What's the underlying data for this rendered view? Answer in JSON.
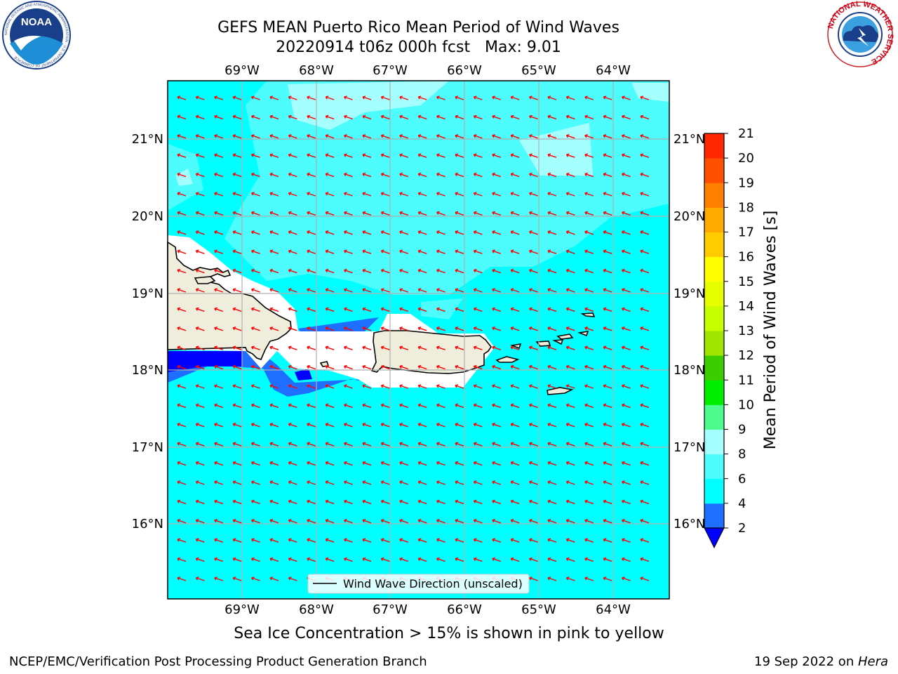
{
  "header": {
    "title_line1": "GEFS MEAN Puerto Rico Mean Period of Wind Waves",
    "title_line2": "20220914 t06z 000h fcst   Max: 9.01"
  },
  "logos": {
    "left": "noaa-logo",
    "left_text": "NOAA",
    "left_ring_text": "NATIONAL OCEANIC AND ATMOSPHERIC ADMINISTRATION · U.S. DEPARTMENT OF COMMERCE",
    "right": "national-weather-service-logo",
    "right_ring_text": "NATIONAL WEATHER SERVICE"
  },
  "map": {
    "lon_labels": [
      "69°W",
      "68°W",
      "67°W",
      "66°W",
      "65°W",
      "64°W"
    ],
    "lat_labels": [
      "21°N",
      "20°N",
      "19°N",
      "18°N",
      "17°N",
      "16°N"
    ],
    "lon_range": [
      -70.0,
      -63.3
    ],
    "lat_range": [
      15.0,
      21.75
    ],
    "legend_label": "Wind Wave Direction (unscaled)",
    "arrow_color": "#ff0000",
    "land_color": "#efeedd"
  },
  "colorbar": {
    "label": "Mean Period of Wind Waves [s]",
    "tick_labels": [
      "2",
      "4",
      "6",
      "8",
      "9",
      "10",
      "11",
      "12",
      "13",
      "14",
      "15",
      "16",
      "17",
      "18",
      "19",
      "20",
      "21"
    ],
    "colors": [
      "#0000ff",
      "#1e6eff",
      "#00ffff",
      "#4dfcfc",
      "#a5ffff",
      "#4dfc8c",
      "#00ee00",
      "#3ccc00",
      "#a0e600",
      "#c8ff00",
      "#e6ff00",
      "#ffff00",
      "#ffcc00",
      "#ffaa00",
      "#ff8000",
      "#ff5000",
      "#ff2800",
      "#ff0000"
    ]
  },
  "footer": {
    "caption": "Sea Ice Concentration > 15% is shown in pink to yellow",
    "credit_left": "NCEP/EMC/Verification Post Processing Product Generation Branch",
    "credit_right_date": "19 Sep 2022 on ",
    "credit_right_host": "Hera"
  }
}
